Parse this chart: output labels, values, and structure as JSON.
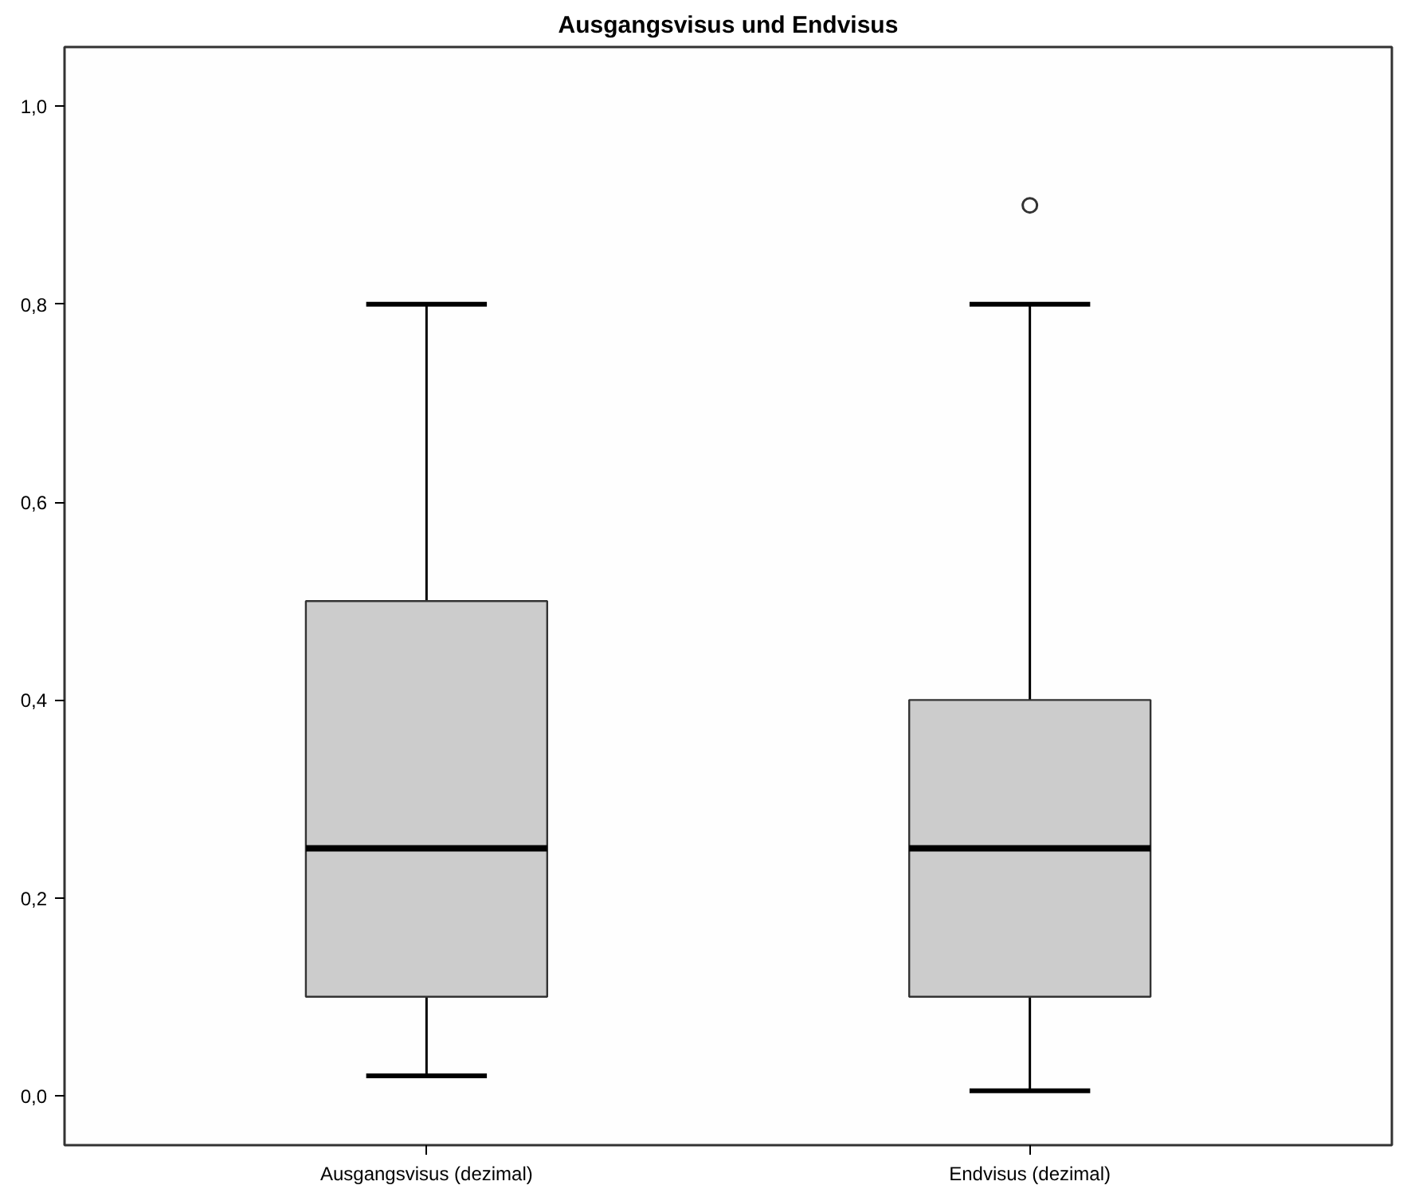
{
  "chart_data": {
    "type": "box",
    "title": "Ausgangsvisus und Endvisus",
    "categories": [
      "Ausgangsvisus (dezimal)",
      "Endvisus (dezimal)"
    ],
    "color": "#cccccc",
    "boxes": [
      {
        "low": 0.02,
        "q1": 0.1,
        "median": 0.25,
        "q3": 0.5,
        "high": 0.8
      },
      {
        "low": 0.005,
        "q1": 0.1,
        "median": 0.25,
        "q3": 0.4,
        "high": 0.8,
        "outliers": [
          0.9
        ]
      }
    ],
    "ylim": [
      -0.05,
      1.06
    ],
    "yticks": [
      {
        "value": 0.0,
        "label": "0,0"
      },
      {
        "value": 0.2,
        "label": "0,2"
      },
      {
        "value": 0.4,
        "label": "0,4"
      },
      {
        "value": 0.6,
        "label": "0,6"
      },
      {
        "value": 0.8,
        "label": "0,8"
      },
      {
        "value": 1.0,
        "label": "1,0"
      }
    ],
    "grid": false
  }
}
